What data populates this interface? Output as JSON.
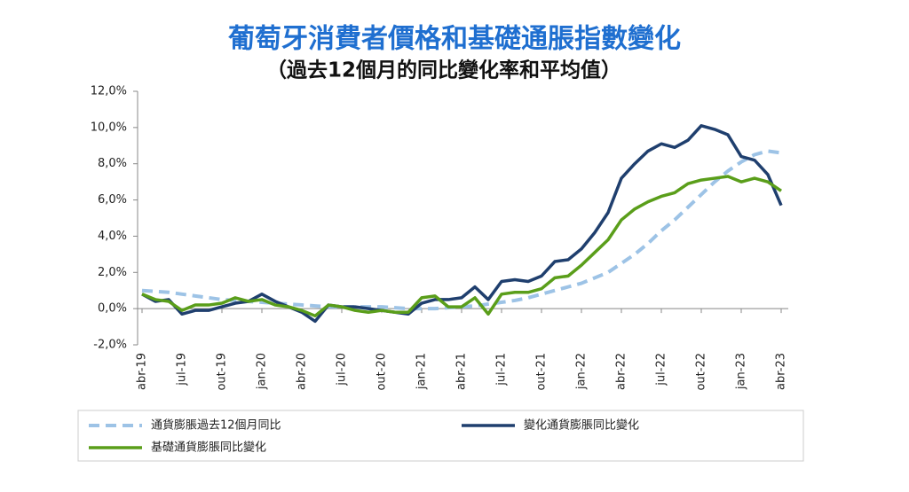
{
  "chart_data": {
    "type": "line",
    "title": "葡萄牙消費者價格和基礎通脹指數變化",
    "subtitle": "（過去12個月的同比變化率和平均值）",
    "categories": [
      "abr-19",
      null,
      null,
      "jul-19",
      null,
      null,
      "out-19",
      null,
      null,
      "jan-20",
      null,
      null,
      "abr-20",
      null,
      null,
      "jul-20",
      null,
      null,
      "out-20",
      null,
      null,
      "jan-21",
      null,
      null,
      "abr-21",
      null,
      null,
      "jul-21",
      null,
      null,
      "out-21",
      null,
      null,
      "jan-22",
      null,
      null,
      "abr-22",
      null,
      null,
      "jul-22",
      null,
      null,
      "out-22",
      null,
      null,
      "jan-23",
      null,
      null,
      "abr-23"
    ],
    "series": [
      {
        "name": "通貨膨脹過去12個月同比",
        "color": "#9dc3e6",
        "dashed": true,
        "values": [
          1.0,
          0.95,
          0.9,
          0.8,
          0.7,
          0.6,
          0.5,
          0.45,
          0.4,
          0.35,
          0.3,
          0.25,
          0.2,
          0.15,
          0.1,
          0.1,
          0.1,
          0.1,
          0.1,
          0.05,
          0.0,
          0.0,
          0.0,
          0.05,
          0.1,
          0.15,
          0.25,
          0.35,
          0.45,
          0.6,
          0.8,
          1.0,
          1.2,
          1.4,
          1.7,
          2.0,
          2.5,
          3.0,
          3.6,
          4.3,
          4.9,
          5.6,
          6.3,
          7.0,
          7.6,
          8.1,
          8.5,
          8.7,
          8.6
        ]
      },
      {
        "name": "變化通貨膨脹同比變化",
        "color": "#1f3f6e",
        "dashed": false,
        "values": [
          0.8,
          0.4,
          0.5,
          -0.3,
          -0.1,
          -0.1,
          0.1,
          0.3,
          0.4,
          0.8,
          0.4,
          0.1,
          -0.2,
          -0.7,
          0.2,
          0.1,
          0.1,
          0.0,
          -0.1,
          -0.2,
          -0.3,
          0.3,
          0.5,
          0.5,
          0.6,
          1.2,
          0.5,
          1.5,
          1.6,
          1.5,
          1.8,
          2.6,
          2.7,
          3.3,
          4.2,
          5.3,
          7.2,
          8.0,
          8.7,
          9.1,
          8.9,
          9.3,
          10.1,
          9.9,
          9.6,
          8.4,
          8.2,
          7.4,
          5.7
        ]
      },
      {
        "name": "基礎通貨膨脹同比變化",
        "color": "#5a9e1a",
        "dashed": false,
        "values": [
          0.8,
          0.5,
          0.4,
          -0.1,
          0.2,
          0.2,
          0.3,
          0.6,
          0.4,
          0.5,
          0.2,
          0.1,
          -0.1,
          -0.4,
          0.2,
          0.1,
          -0.1,
          -0.2,
          -0.1,
          -0.2,
          -0.2,
          0.6,
          0.7,
          0.1,
          0.1,
          0.6,
          -0.3,
          0.8,
          0.9,
          0.9,
          1.1,
          1.7,
          1.8,
          2.4,
          3.1,
          3.8,
          4.9,
          5.5,
          5.9,
          6.2,
          6.4,
          6.9,
          7.1,
          7.2,
          7.3,
          7.0,
          7.2,
          7.0,
          6.5
        ]
      }
    ],
    "ylim": [
      -2,
      12
    ],
    "yticks": [
      {
        "value": -2,
        "label": "-2,0%"
      },
      {
        "value": 0,
        "label": "0,0%"
      },
      {
        "value": 2,
        "label": "2,0%"
      },
      {
        "value": 4,
        "label": "4,0%"
      },
      {
        "value": 6,
        "label": "6,0%"
      },
      {
        "value": 8,
        "label": "8,0%"
      },
      {
        "value": 10,
        "label": "10,0%"
      },
      {
        "value": 12,
        "label": "12,0%"
      }
    ],
    "grid": false,
    "legend": "bottom"
  }
}
